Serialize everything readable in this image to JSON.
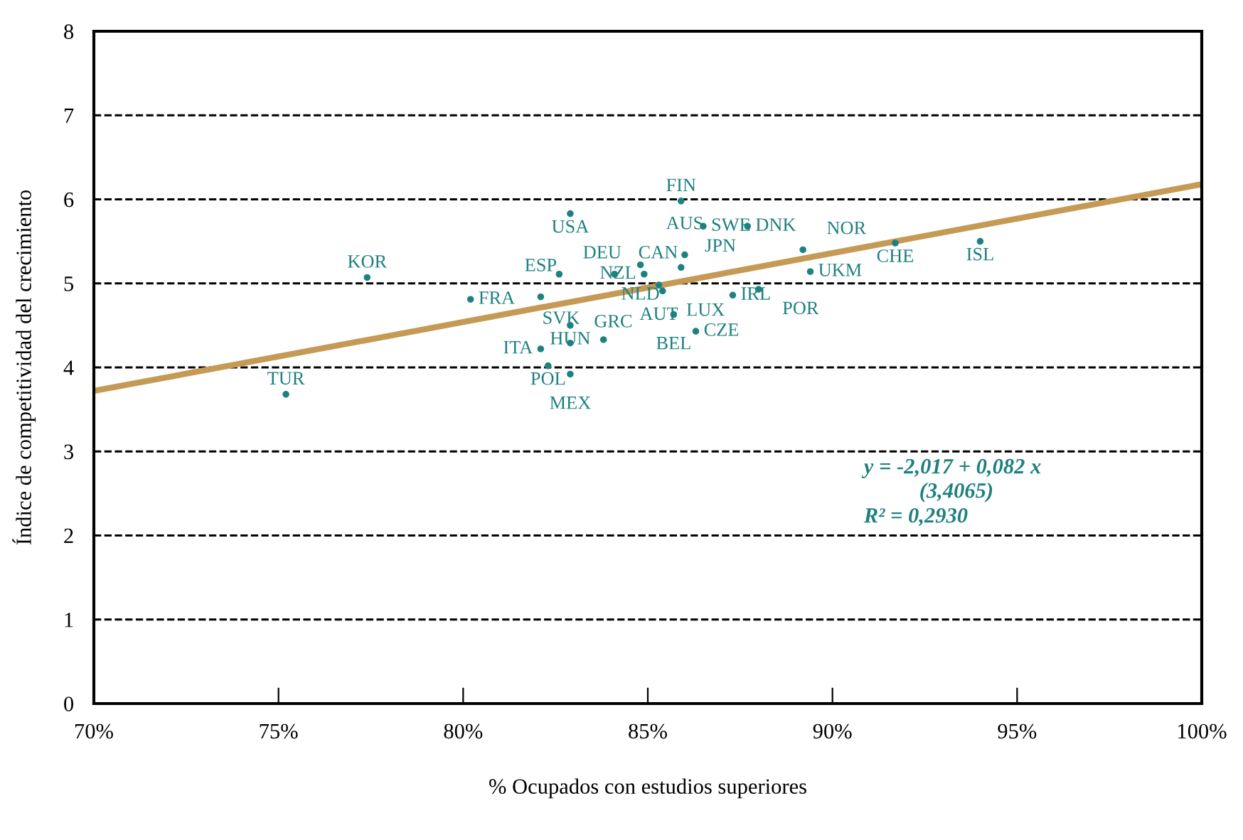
{
  "chart_data": {
    "type": "scatter",
    "xlabel": "% Ocupados con estudios superiores",
    "ylabel": "Índice de competitividad del crecimiento",
    "xlim": [
      70,
      100
    ],
    "ylim": [
      0,
      8
    ],
    "xticks": [
      {
        "value": 70,
        "label": "70%"
      },
      {
        "value": 75,
        "label": "75%"
      },
      {
        "value": 80,
        "label": "80%"
      },
      {
        "value": 85,
        "label": "85%"
      },
      {
        "value": 90,
        "label": "90%"
      },
      {
        "value": 95,
        "label": "95%"
      },
      {
        "value": 100,
        "label": "100%"
      }
    ],
    "yticks": [
      0,
      1,
      2,
      3,
      4,
      5,
      6,
      7,
      8
    ],
    "grid": "y",
    "series": [
      {
        "marker": "circle",
        "color": "#1f8080",
        "x": [
          75.2,
          77.4,
          80.2,
          82.1,
          82.9,
          82.6,
          82.9,
          82.1,
          82.9,
          83.8,
          82.3,
          82.9,
          84.1,
          84.9,
          84.8,
          85.3,
          85.4,
          85.9,
          86.0,
          85.9,
          86.5,
          87.7,
          85.7,
          86.3,
          87.3,
          88.0,
          89.2,
          89.4,
          91.7,
          94.0
        ],
        "values": [
          3.68,
          5.07,
          4.81,
          4.84,
          5.83,
          5.11,
          4.5,
          4.22,
          4.29,
          4.33,
          4.02,
          3.92,
          5.11,
          5.11,
          5.22,
          4.98,
          4.91,
          5.19,
          5.34,
          5.98,
          5.68,
          5.68,
          4.63,
          4.43,
          4.86,
          4.93,
          5.4,
          5.14,
          5.48,
          5.5
        ]
      },
      {
        "type": "line",
        "color": "#c49a55",
        "x": [
          70,
          100
        ],
        "values": [
          3.72,
          6.18
        ]
      }
    ],
    "annotations": [
      {
        "text": "TUR",
        "x": 75.2,
        "y": 3.68
      },
      {
        "text": "KOR",
        "x": 77.4,
        "y": 5.07
      },
      {
        "text": "FRA",
        "x": 80.2,
        "y": 4.81
      },
      {
        "text": "ESP",
        "x": 82.1,
        "y": 4.84
      },
      {
        "text": "USA",
        "x": 82.9,
        "y": 5.83
      },
      {
        "text": "DEU",
        "x": 82.6,
        "y": 5.11
      },
      {
        "text": "HUN",
        "x": 82.9,
        "y": 4.5
      },
      {
        "text": "ITA",
        "x": 82.1,
        "y": 4.22
      },
      {
        "text": "GRC",
        "x": 82.9,
        "y": 4.29
      },
      {
        "text": "SVK",
        "x": 83.8,
        "y": 4.33
      },
      {
        "text": "POL",
        "x": 82.3,
        "y": 4.02
      },
      {
        "text": "MEX",
        "x": 82.9,
        "y": 3.92
      },
      {
        "text": "CAN",
        "x": 84.1,
        "y": 5.11
      },
      {
        "text": "NZL",
        "x": 84.9,
        "y": 5.11
      },
      {
        "text": "NLD",
        "x": 84.8,
        "y": 5.22
      },
      {
        "text": "AUT",
        "x": 85.3,
        "y": 4.98
      },
      {
        "text": "LUX",
        "x": 85.4,
        "y": 4.91
      },
      {
        "text": "JPN",
        "x": 85.9,
        "y": 5.19
      },
      {
        "text": "AUS",
        "x": 86.0,
        "y": 5.34
      },
      {
        "text": "FIN",
        "x": 85.9,
        "y": 5.98
      },
      {
        "text": "SWE",
        "x": 86.5,
        "y": 5.68
      },
      {
        "text": "DNK",
        "x": 87.7,
        "y": 5.68
      },
      {
        "text": "BEL",
        "x": 85.7,
        "y": 4.63
      },
      {
        "text": "CZE",
        "x": 86.3,
        "y": 4.43
      },
      {
        "text": "IRL",
        "x": 87.3,
        "y": 4.86
      },
      {
        "text": "POR",
        "x": 88.0,
        "y": 4.93
      },
      {
        "text": "NOR",
        "x": 89.2,
        "y": 5.4
      },
      {
        "text": "UKM",
        "x": 89.4,
        "y": 5.14
      },
      {
        "text": "CHE",
        "x": 91.7,
        "y": 5.48
      },
      {
        "text": "ISL",
        "x": 94.0,
        "y": 5.5
      },
      "y = -2,017 + 0,082 x",
      "(3,4065)",
      "R² = 0,2930"
    ]
  }
}
